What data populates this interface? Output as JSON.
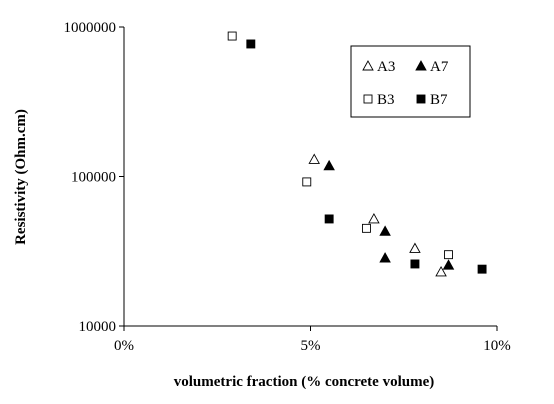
{
  "chart_data": {
    "type": "scatter",
    "title": "",
    "xlabel": "volumetric fraction (% concrete volume)",
    "ylabel": "Resistivity (Ohm.cm)",
    "xlim": [
      0,
      10
    ],
    "ylim": [
      10000,
      1000000
    ],
    "yscale": "log",
    "x_ticks": [
      {
        "value": 0,
        "label": "0%"
      },
      {
        "value": 5,
        "label": "5%"
      },
      {
        "value": 10,
        "label": "10%"
      }
    ],
    "y_ticks": [
      {
        "value": 10000,
        "label": "10000"
      },
      {
        "value": 100000,
        "label": "100000"
      },
      {
        "value": 1000000,
        "label": "1000000"
      }
    ],
    "grid": false,
    "legend": {
      "placement": "top-right",
      "columns": 2
    },
    "series": [
      {
        "name": "A3",
        "marker": "triangle-open",
        "color": "#000000",
        "x": [
          5.1,
          6.7,
          7.8,
          8.5
        ],
        "y": [
          130000,
          52000,
          33000,
          23000
        ]
      },
      {
        "name": "A7",
        "marker": "triangle-filled",
        "color": "#000000",
        "x": [
          5.5,
          7.0,
          7.0,
          8.7
        ],
        "y": [
          118000,
          43000,
          28500,
          25500
        ]
      },
      {
        "name": "B3",
        "marker": "square-open",
        "color": "#000000",
        "x": [
          2.9,
          4.9,
          6.5,
          8.7
        ],
        "y": [
          870000,
          92000,
          45000,
          30000
        ]
      },
      {
        "name": "B7",
        "marker": "square-filled",
        "color": "#000000",
        "x": [
          3.4,
          5.5,
          7.8,
          9.6
        ],
        "y": [
          770000,
          52000,
          26000,
          24000
        ]
      }
    ]
  }
}
